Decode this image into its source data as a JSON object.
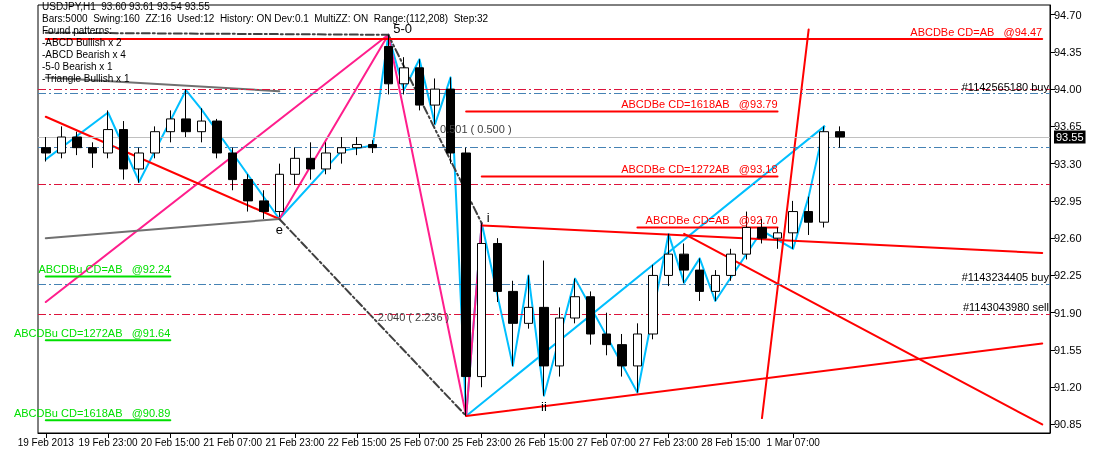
{
  "chart_data": {
    "type": "candlestick",
    "title": "USDJPY,H1  93.60 93.61 93.54 93.55",
    "subtitle": "Bars:5000  Swing:160  ZZ:16  Used:12  History: ON Dev:0.1  MultiZZ: ON  Range:(112,208)  Step:32",
    "color": "#000000",
    "categories": [
      "19 Feb 2013",
      null,
      null,
      null,
      "19 Feb 23:00",
      null,
      null,
      null,
      "20 Feb 15:00",
      null,
      null,
      null,
      "21 Feb 07:00",
      null,
      null,
      null,
      "21 Feb 23:00",
      null,
      null,
      null,
      "22 Feb 15:00",
      null,
      null,
      null,
      "25 Feb 07:00",
      null,
      null,
      null,
      "25 Feb 23:00",
      null,
      null,
      null,
      "26 Feb 15:00",
      null,
      null,
      null,
      "27 Feb 07:00",
      null,
      null,
      null,
      "27 Feb 23:00",
      null,
      null,
      null,
      "28 Feb 15:00",
      null,
      null,
      null,
      "1 Mar 07:00",
      null,
      null,
      null,
      null,
      null,
      null,
      null,
      null,
      null,
      null,
      null,
      null,
      null,
      null,
      null,
      null
    ],
    "ohlc": [
      [
        93.45,
        93.55,
        93.32,
        93.4
      ],
      [
        93.4,
        93.65,
        93.35,
        93.55
      ],
      [
        93.55,
        93.6,
        93.38,
        93.45
      ],
      [
        93.45,
        93.5,
        93.26,
        93.4
      ],
      [
        93.4,
        93.8,
        93.35,
        93.62
      ],
      [
        93.62,
        93.7,
        93.15,
        93.25
      ],
      [
        93.25,
        93.45,
        93.12,
        93.4
      ],
      [
        93.4,
        93.65,
        93.35,
        93.6
      ],
      [
        93.6,
        93.8,
        93.5,
        93.72
      ],
      [
        93.72,
        94.0,
        93.55,
        93.6
      ],
      [
        93.6,
        93.82,
        93.5,
        93.7
      ],
      [
        93.7,
        93.72,
        93.35,
        93.4
      ],
      [
        93.4,
        93.45,
        93.05,
        93.15
      ],
      [
        93.15,
        93.2,
        92.85,
        92.95
      ],
      [
        92.95,
        93.05,
        92.78,
        92.85
      ],
      [
        92.85,
        93.3,
        92.8,
        93.2
      ],
      [
        93.2,
        93.45,
        93.1,
        93.35
      ],
      [
        93.35,
        93.5,
        93.15,
        93.25
      ],
      [
        93.25,
        93.5,
        93.2,
        93.4
      ],
      [
        93.4,
        93.55,
        93.3,
        93.45
      ],
      [
        93.45,
        93.55,
        93.38,
        93.48
      ],
      [
        93.48,
        93.52,
        93.4,
        93.45
      ],
      [
        94.4,
        94.51,
        93.95,
        94.05
      ],
      [
        94.05,
        94.3,
        93.95,
        94.2
      ],
      [
        94.2,
        94.28,
        93.8,
        93.85
      ],
      [
        93.85,
        94.1,
        93.67,
        94.0
      ],
      [
        94.0,
        94.11,
        93.3,
        93.4
      ],
      [
        93.4,
        93.45,
        90.93,
        91.3
      ],
      [
        91.3,
        92.74,
        91.2,
        92.55
      ],
      [
        92.55,
        92.6,
        92.0,
        92.1
      ],
      [
        92.1,
        92.2,
        91.4,
        91.8
      ],
      [
        91.8,
        92.25,
        91.75,
        91.95
      ],
      [
        91.95,
        92.39,
        91.12,
        91.4
      ],
      [
        91.4,
        91.95,
        91.3,
        91.85
      ],
      [
        91.85,
        92.22,
        91.8,
        92.05
      ],
      [
        92.05,
        92.1,
        91.6,
        91.7
      ],
      [
        91.7,
        91.9,
        91.5,
        91.6
      ],
      [
        91.6,
        91.7,
        91.3,
        91.4
      ],
      [
        91.4,
        91.8,
        91.15,
        91.7
      ],
      [
        91.7,
        92.35,
        91.65,
        92.25
      ],
      [
        92.25,
        92.64,
        92.15,
        92.45
      ],
      [
        92.45,
        92.55,
        92.18,
        92.3
      ],
      [
        92.3,
        92.41,
        92.01,
        92.1
      ],
      [
        92.1,
        92.3,
        92.01,
        92.25
      ],
      [
        92.25,
        92.5,
        92.2,
        92.45
      ],
      [
        92.45,
        92.85,
        92.4,
        92.7
      ],
      [
        92.7,
        92.78,
        92.55,
        92.6
      ],
      [
        92.6,
        92.7,
        92.5,
        92.65
      ],
      [
        92.65,
        92.95,
        92.5,
        92.85
      ],
      [
        92.85,
        92.99,
        92.63,
        92.75
      ],
      [
        92.75,
        93.65,
        92.7,
        93.6
      ],
      [
        93.6,
        93.65,
        93.45,
        93.55
      ],
      null,
      null,
      null,
      null,
      null,
      null,
      null,
      null,
      null,
      null,
      null,
      null,
      null
    ],
    "series": [
      {
        "type": "line",
        "color": "#00bfff",
        "values": [
          93.34,
          null,
          null,
          null,
          93.78,
          null,
          93.13,
          null,
          null,
          93.99,
          93.81,
          null,
          null,
          null,
          null,
          92.78,
          null,
          null,
          null,
          93.42,
          null,
          93.47,
          94.51,
          93.99,
          94.28,
          93.67,
          94.11,
          90.93,
          92.74,
          null,
          91.4,
          92.25,
          91.12,
          null,
          92.22,
          null,
          null,
          null,
          91.15,
          null,
          92.64,
          92.18,
          92.41,
          92.01,
          null,
          null,
          92.67,
          null,
          92.5,
          92.99,
          93.65,
          null,
          null,
          null,
          null,
          null,
          null,
          null,
          null,
          null,
          null,
          null,
          null,
          null,
          null
        ]
      },
      {
        "type": "line",
        "color": "#00bfff",
        "values": [
          null,
          null,
          null,
          null,
          null,
          null,
          null,
          null,
          null,
          null,
          null,
          null,
          null,
          null,
          null,
          null,
          null,
          null,
          null,
          null,
          null,
          null,
          null,
          null,
          null,
          null,
          null,
          90.93,
          null,
          null,
          null,
          null,
          null,
          null,
          null,
          null,
          null,
          null,
          null,
          null,
          null,
          null,
          null,
          null,
          null,
          null,
          null,
          null,
          null,
          null,
          93.65,
          null,
          null,
          null,
          null,
          null,
          null,
          null,
          null,
          null,
          null,
          null,
          null,
          null,
          null
        ]
      },
      {
        "type": "line",
        "color": "#ff1e8c",
        "values": [
          null,
          null,
          null,
          null,
          null,
          null,
          null,
          null,
          null,
          null,
          null,
          null,
          null,
          null,
          null,
          92.78,
          null,
          null,
          null,
          null,
          null,
          null,
          94.51,
          null,
          null,
          null,
          null,
          90.93,
          92.74,
          null,
          null,
          null,
          null,
          null,
          null,
          null,
          null,
          null,
          null,
          null,
          null,
          null,
          null,
          null,
          null,
          null,
          null,
          null,
          null,
          null,
          null,
          null,
          null,
          null,
          null,
          null,
          null,
          null,
          null,
          null,
          null,
          null,
          null,
          null,
          null
        ]
      },
      {
        "type": "line",
        "color": "#ff1e8c",
        "values": [
          92.0,
          null,
          null,
          null,
          null,
          null,
          null,
          null,
          null,
          null,
          null,
          null,
          null,
          null,
          null,
          null,
          null,
          null,
          null,
          null,
          null,
          null,
          94.51,
          null,
          null,
          null,
          null,
          null,
          null,
          null,
          null,
          null,
          null,
          null,
          null,
          null,
          null,
          null,
          null,
          null,
          null,
          null,
          null,
          null,
          null,
          null,
          null,
          null,
          null,
          null,
          null,
          null,
          null,
          null,
          null,
          null,
          null,
          null,
          null,
          null,
          null,
          null,
          null,
          null,
          null
        ]
      },
      {
        "type": "line",
        "color": "#ff0000",
        "values": [
          93.74,
          null,
          null,
          null,
          null,
          null,
          null,
          null,
          null,
          null,
          null,
          null,
          null,
          null,
          null,
          92.78,
          null,
          null,
          null,
          null,
          null,
          null,
          null,
          null,
          null,
          null,
          null,
          null,
          null,
          null,
          null,
          null,
          null,
          null,
          null,
          null,
          null,
          null,
          null,
          null,
          null,
          null,
          null,
          null,
          null,
          null,
          null,
          null,
          null,
          null,
          null,
          null,
          null,
          null,
          null,
          null,
          null,
          null,
          null,
          null,
          null,
          null,
          null,
          null,
          null
        ]
      },
      {
        "type": "line",
        "color": "#707070",
        "values": [
          94.11,
          null,
          null,
          null,
          null,
          null,
          null,
          null,
          null,
          null,
          null,
          null,
          null,
          null,
          null,
          93.98,
          null,
          null,
          null,
          null,
          null,
          null,
          null,
          null,
          null,
          null,
          null,
          null,
          null,
          null,
          null,
          null,
          null,
          null,
          null,
          null,
          null,
          null,
          null,
          null,
          null,
          null,
          null,
          null,
          null,
          null,
          null,
          null,
          null,
          null,
          null,
          null,
          null,
          null,
          null,
          null,
          null,
          null,
          null,
          null,
          null,
          null,
          null,
          null,
          null
        ]
      },
      {
        "type": "line",
        "color": "#707070",
        "values": [
          92.6,
          null,
          null,
          null,
          null,
          null,
          null,
          null,
          null,
          null,
          null,
          null,
          null,
          null,
          null,
          92.78,
          null,
          null,
          null,
          null,
          null,
          null,
          null,
          null,
          null,
          null,
          null,
          null,
          null,
          null,
          null,
          null,
          null,
          null,
          null,
          null,
          null,
          null,
          null,
          null,
          null,
          null,
          null,
          null,
          null,
          null,
          null,
          null,
          null,
          null,
          null,
          null,
          null,
          null,
          null,
          null,
          null,
          null,
          null,
          null,
          null,
          null,
          null,
          null,
          null
        ]
      },
      {
        "type": "line",
        "color": "#ff0000",
        "values": [
          null,
          null,
          null,
          null,
          null,
          null,
          null,
          null,
          null,
          null,
          null,
          null,
          null,
          null,
          null,
          null,
          null,
          null,
          null,
          null,
          null,
          null,
          null,
          null,
          null,
          null,
          null,
          null,
          null,
          null,
          null,
          null,
          null,
          null,
          null,
          null,
          null,
          null,
          null,
          null,
          null,
          null,
          null,
          null,
          null,
          null,
          90.91,
          null,
          null,
          94.56,
          null,
          null,
          null,
          null,
          null,
          null,
          null,
          null,
          null,
          null,
          null,
          null,
          null,
          null,
          null
        ]
      },
      {
        "type": "line",
        "color": "#ff0000",
        "values": [
          null,
          null,
          null,
          null,
          null,
          null,
          null,
          null,
          null,
          null,
          null,
          null,
          null,
          null,
          null,
          null,
          null,
          null,
          null,
          null,
          null,
          null,
          null,
          null,
          null,
          null,
          null,
          null,
          92.72,
          null,
          null,
          null,
          null,
          null,
          null,
          null,
          null,
          null,
          null,
          null,
          null,
          null,
          null,
          null,
          null,
          null,
          null,
          null,
          null,
          null,
          null,
          null,
          null,
          null,
          null,
          null,
          null,
          null,
          null,
          null,
          null,
          null,
          null,
          null,
          92.46
        ]
      },
      {
        "type": "line",
        "color": "#ff0000",
        "values": [
          null,
          null,
          null,
          null,
          null,
          null,
          null,
          null,
          null,
          null,
          null,
          null,
          null,
          null,
          null,
          null,
          null,
          null,
          null,
          null,
          null,
          null,
          null,
          null,
          null,
          null,
          null,
          90.93,
          null,
          null,
          null,
          null,
          null,
          null,
          null,
          null,
          null,
          null,
          null,
          null,
          null,
          null,
          null,
          null,
          null,
          null,
          null,
          null,
          null,
          null,
          null,
          null,
          null,
          null,
          null,
          null,
          null,
          null,
          null,
          null,
          null,
          null,
          null,
          null,
          91.61
        ]
      },
      {
        "type": "line",
        "color": "#ff0000",
        "values": [
          null,
          null,
          null,
          null,
          null,
          null,
          null,
          null,
          null,
          null,
          null,
          null,
          null,
          null,
          null,
          null,
          null,
          null,
          null,
          null,
          null,
          null,
          null,
          null,
          null,
          null,
          null,
          null,
          null,
          null,
          null,
          null,
          null,
          null,
          null,
          null,
          null,
          null,
          null,
          null,
          null,
          92.64,
          null,
          null,
          null,
          null,
          null,
          null,
          null,
          null,
          null,
          null,
          null,
          null,
          null,
          null,
          null,
          null,
          null,
          null,
          null,
          null,
          null,
          null,
          90.85
        ]
      },
      {
        "type": "line",
        "color": "#404040",
        "line_style": "dashed",
        "values": [
          94.53,
          null,
          null,
          null,
          null,
          null,
          null,
          null,
          null,
          null,
          null,
          null,
          null,
          null,
          null,
          null,
          null,
          null,
          null,
          null,
          null,
          null,
          94.51,
          null,
          null,
          null,
          null,
          null,
          null,
          null,
          null,
          null,
          null,
          null,
          null,
          null,
          null,
          null,
          null,
          null,
          null,
          null,
          null,
          null,
          null,
          null,
          null,
          null,
          null,
          null,
          null,
          null,
          null,
          null,
          null,
          null,
          null,
          null,
          null,
          null,
          null,
          null,
          null,
          null,
          null
        ]
      },
      {
        "type": "line",
        "name": "0.501 ( 0.500 )",
        "color": "#404040",
        "line_style": "dashed",
        "values": [
          null,
          null,
          null,
          null,
          null,
          null,
          null,
          null,
          null,
          null,
          null,
          null,
          null,
          null,
          null,
          null,
          null,
          null,
          null,
          null,
          null,
          null,
          94.51,
          null,
          null,
          null,
          null,
          null,
          92.74,
          null,
          null,
          null,
          null,
          null,
          null,
          null,
          null,
          null,
          null,
          null,
          null,
          null,
          null,
          null,
          null,
          null,
          null,
          null,
          null,
          null,
          null,
          null,
          null,
          null,
          null,
          null,
          null,
          null,
          null,
          null,
          null,
          null,
          null,
          null,
          null
        ]
      },
      {
        "type": "line",
        "name": "2.040 ( 2.236 )",
        "color": "#404040",
        "line_style": "dashed",
        "values": [
          null,
          null,
          null,
          null,
          null,
          null,
          null,
          null,
          null,
          null,
          null,
          null,
          null,
          null,
          null,
          92.78,
          null,
          null,
          null,
          null,
          null,
          null,
          null,
          null,
          null,
          null,
          null,
          90.93,
          null,
          null,
          null,
          null,
          null,
          null,
          null,
          null,
          null,
          null,
          null,
          null,
          null,
          null,
          null,
          null,
          null,
          null,
          null,
          null,
          null,
          null,
          null,
          null,
          null,
          null,
          null,
          null,
          null,
          null,
          null,
          null,
          null,
          null,
          null,
          null,
          null
        ]
      },
      {
        "type": "line",
        "name": "ABCDBe CD=AB   @94.47",
        "color": "#ff0000",
        "values": [
          94.47,
          null,
          null,
          null,
          null,
          null,
          null,
          null,
          null,
          null,
          null,
          null,
          null,
          null,
          null,
          null,
          null,
          null,
          null,
          null,
          null,
          null,
          null,
          null,
          null,
          null,
          null,
          null,
          null,
          null,
          null,
          null,
          null,
          null,
          null,
          null,
          null,
          null,
          null,
          null,
          null,
          null,
          null,
          null,
          null,
          null,
          null,
          null,
          null,
          null,
          null,
          null,
          null,
          null,
          null,
          null,
          null,
          null,
          null,
          null,
          null,
          null,
          null,
          null,
          94.47
        ]
      },
      {
        "type": "line",
        "name": "ABCDBe CD=1618AB   @93.79",
        "color": "#ff0000",
        "values": [
          null,
          null,
          null,
          null,
          null,
          null,
          null,
          null,
          null,
          null,
          null,
          null,
          null,
          null,
          null,
          null,
          null,
          null,
          null,
          null,
          null,
          null,
          null,
          null,
          null,
          null,
          null,
          93.79,
          null,
          null,
          null,
          null,
          null,
          null,
          null,
          null,
          null,
          null,
          null,
          null,
          null,
          null,
          null,
          null,
          null,
          null,
          null,
          93.79,
          null,
          null,
          null,
          null,
          null,
          null,
          null,
          null,
          null,
          null,
          null,
          null,
          null,
          null,
          null,
          null,
          null
        ]
      },
      {
        "type": "line",
        "name": "ABCDBe CD=1272AB   @93.18",
        "color": "#ff0000",
        "values": [
          null,
          null,
          null,
          null,
          null,
          null,
          null,
          null,
          null,
          null,
          null,
          null,
          null,
          null,
          null,
          null,
          null,
          null,
          null,
          null,
          null,
          null,
          null,
          null,
          null,
          null,
          null,
          null,
          93.18,
          null,
          null,
          null,
          null,
          null,
          null,
          null,
          null,
          null,
          null,
          null,
          null,
          null,
          null,
          null,
          null,
          null,
          null,
          93.18,
          null,
          null,
          null,
          null,
          null,
          null,
          null,
          null,
          null,
          null,
          null,
          null,
          null,
          null,
          null,
          null,
          null
        ]
      },
      {
        "type": "line",
        "name": "ABCDBe CD=AB   @92.70",
        "color": "#ff0000",
        "values": [
          null,
          null,
          null,
          null,
          null,
          null,
          null,
          null,
          null,
          null,
          null,
          null,
          null,
          null,
          null,
          null,
          null,
          null,
          null,
          null,
          null,
          null,
          null,
          null,
          null,
          null,
          null,
          null,
          null,
          null,
          null,
          null,
          null,
          null,
          null,
          null,
          null,
          null,
          92.7,
          null,
          null,
          null,
          null,
          null,
          null,
          null,
          null,
          92.7,
          null,
          null,
          null,
          null,
          null,
          null,
          null,
          null,
          null,
          null,
          null,
          null,
          null,
          null,
          null,
          null,
          null
        ]
      },
      {
        "type": "line",
        "name": "ABCDBu CD=AB   @92.24",
        "color": "#00e000",
        "values": [
          92.24,
          null,
          null,
          null,
          null,
          null,
          null,
          null,
          92.24,
          null,
          null,
          null,
          null,
          null,
          null,
          null,
          null,
          null,
          null,
          null,
          null,
          null,
          null,
          null,
          null,
          null,
          null,
          null,
          null,
          null,
          null,
          null,
          null,
          null,
          null,
          null,
          null,
          null,
          null,
          null,
          null,
          null,
          null,
          null,
          null,
          null,
          null,
          null,
          null,
          null,
          null,
          null,
          null,
          null,
          null,
          null,
          null,
          null,
          null,
          null,
          null,
          null,
          null,
          null,
          null
        ]
      },
      {
        "type": "line",
        "name": "ABCDBu CD=1272AB   @91.64",
        "color": "#00e000",
        "values": [
          91.64,
          null,
          null,
          null,
          null,
          null,
          null,
          null,
          91.64,
          null,
          null,
          null,
          null,
          null,
          null,
          null,
          null,
          null,
          null,
          null,
          null,
          null,
          null,
          null,
          null,
          null,
          null,
          null,
          null,
          null,
          null,
          null,
          null,
          null,
          null,
          null,
          null,
          null,
          null,
          null,
          null,
          null,
          null,
          null,
          null,
          null,
          null,
          null,
          null,
          null,
          null,
          null,
          null,
          null,
          null,
          null,
          null,
          null,
          null,
          null,
          null,
          null,
          null,
          null,
          null
        ]
      },
      {
        "type": "line",
        "name": "ABCDBu CD=1618AB   @90.89",
        "color": "#00e000",
        "values": [
          90.89,
          null,
          null,
          null,
          null,
          null,
          null,
          null,
          90.89,
          null,
          null,
          null,
          null,
          null,
          null,
          null,
          null,
          null,
          null,
          null,
          null,
          null,
          null,
          null,
          null,
          null,
          null,
          null,
          null,
          null,
          null,
          null,
          null,
          null,
          null,
          null,
          null,
          null,
          null,
          null,
          null,
          null,
          null,
          null,
          null,
          null,
          null,
          null,
          null,
          null,
          null,
          null,
          null,
          null,
          null,
          null,
          null,
          null,
          null,
          null,
          null,
          null,
          null,
          null,
          null
        ]
      }
    ],
    "ref_lines": [
      {
        "axis": "y",
        "value": 94.0,
        "color": "#dc143c",
        "line_style": "dashed"
      },
      {
        "axis": "y",
        "value": 93.96,
        "color": "#4682b4",
        "line_style": "dashed",
        "label": "#1142565180 buy"
      },
      {
        "axis": "y",
        "value": 93.45,
        "color": "#4682b4",
        "line_style": "dashed"
      },
      {
        "axis": "y",
        "value": 93.11,
        "color": "#dc143c",
        "line_style": "dashed"
      },
      {
        "axis": "y",
        "value": 92.17,
        "color": "#4682b4",
        "line_style": "dashed",
        "label": "#1143234405 buy"
      },
      {
        "axis": "y",
        "value": 91.89,
        "color": "#dc143c",
        "line_style": "dashed",
        "label": "#1143043980 sell"
      },
      {
        "axis": "y",
        "value": 93.55,
        "color": "#c0c0c0",
        "line_style": "solid",
        "label": "93.55"
      }
    ],
    "annotations": [
      "Found patterns:",
      "-ABCD Bullish x 2",
      "-ABCD Bearish x 4",
      "-5-0 Bearish x 1",
      "-Triangle Bullish x 1",
      {
        "text": "5-0",
        "y": 94.51
      },
      {
        "text": "e",
        "y": 92.78
      },
      {
        "text": "i",
        "y": 92.74
      },
      {
        "text": "ii",
        "y": 91.12
      }
    ],
    "ylim": [
      90.77,
      94.79
    ],
    "yticks": [
      {
        "value": 90.85,
        "label": "90.85"
      },
      {
        "value": 91.2,
        "label": "91.20"
      },
      {
        "value": 91.55,
        "label": "91.55"
      },
      {
        "value": 91.9,
        "label": "91.90"
      },
      {
        "value": 92.25,
        "label": "92.25"
      },
      {
        "value": 92.6,
        "label": "92.60"
      },
      {
        "value": 92.95,
        "label": "92.95"
      },
      {
        "value": 93.3,
        "label": "93.30"
      },
      {
        "value": 93.65,
        "label": "93.65"
      },
      {
        "value": 94.0,
        "label": "94.00"
      },
      {
        "value": 94.35,
        "label": "94.35"
      },
      {
        "value": 94.7,
        "label": "94.70"
      }
    ],
    "grid": false,
    "legend": false
  }
}
